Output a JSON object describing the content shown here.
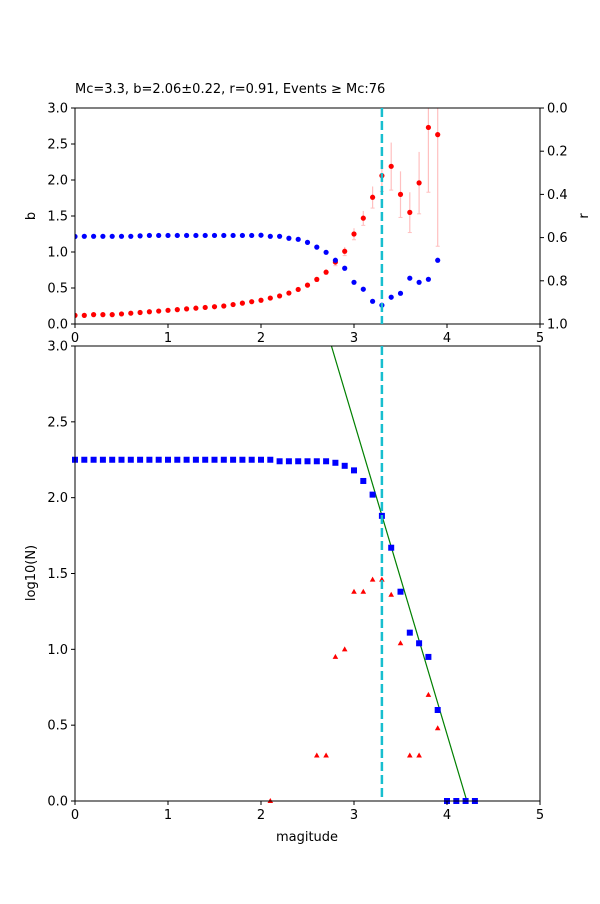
{
  "chart_data": [
    {
      "type": "scatter",
      "title": "Mc=3.3, b=2.06±0.22, r=0.91, Events ≥ Mc:76",
      "xlabel": "",
      "ylabel": "b",
      "y2label": "r",
      "xlim": [
        0,
        5
      ],
      "ylim": [
        0,
        3.0
      ],
      "y2lim": [
        1.0,
        0.0
      ],
      "y2_inverted": true,
      "xticks": [
        "0",
        "1",
        "2",
        "3",
        "4",
        "5"
      ],
      "yticks": [
        "0.0",
        "0.5",
        "1.0",
        "1.5",
        "2.0",
        "2.5",
        "3.0"
      ],
      "y2ticks": [
        "0.0",
        "0.2",
        "0.4",
        "0.6",
        "0.8",
        "1.0"
      ],
      "mc_line": 3.3,
      "mc_line_color": "#17becf",
      "x": [
        0,
        0.1,
        0.2,
        0.3,
        0.4,
        0.5,
        0.6,
        0.7,
        0.8,
        0.9,
        1.0,
        1.1,
        1.2,
        1.3,
        1.4,
        1.5,
        1.6,
        1.7,
        1.8,
        1.9,
        2.0,
        2.1,
        2.2,
        2.3,
        2.4,
        2.5,
        2.6,
        2.7,
        2.8,
        2.9,
        3.0,
        3.1,
        3.2,
        3.3,
        3.4,
        3.5,
        3.6,
        3.7,
        3.8,
        3.9
      ],
      "series": [
        {
          "axis": "left",
          "color": "#ff0000",
          "marker": "circle",
          "values": [
            0.12,
            0.12,
            0.13,
            0.13,
            0.13,
            0.14,
            0.15,
            0.16,
            0.17,
            0.18,
            0.19,
            0.2,
            0.21,
            0.22,
            0.23,
            0.24,
            0.25,
            0.27,
            0.29,
            0.31,
            0.33,
            0.36,
            0.39,
            0.43,
            0.48,
            0.54,
            0.62,
            0.72,
            0.86,
            1.01,
            1.25,
            1.47,
            1.76,
            2.06,
            2.19,
            1.8,
            1.55,
            1.96,
            2.73,
            2.63
          ],
          "errors": [
            0,
            0,
            0,
            0,
            0,
            0,
            0,
            0,
            0,
            0,
            0,
            0,
            0,
            0,
            0,
            0,
            0,
            0,
            0,
            0,
            0.01,
            0.01,
            0.01,
            0.02,
            0.02,
            0.02,
            0.03,
            0.03,
            0.05,
            0.06,
            0.08,
            0.1,
            0.15,
            0.22,
            0.33,
            0.32,
            0.28,
            0.43,
            0.9,
            1.55
          ],
          "error_color": "#ffc0c0"
        },
        {
          "axis": "right",
          "color": "#0000ff",
          "marker": "circle",
          "values": [
            0.595,
            0.594,
            0.594,
            0.594,
            0.594,
            0.594,
            0.594,
            0.592,
            0.59,
            0.59,
            0.59,
            0.59,
            0.59,
            0.59,
            0.59,
            0.59,
            0.59,
            0.59,
            0.59,
            0.59,
            0.589,
            0.594,
            0.594,
            0.603,
            0.608,
            0.622,
            0.644,
            0.668,
            0.705,
            0.742,
            0.807,
            0.839,
            0.895,
            0.913,
            0.876,
            0.858,
            0.788,
            0.807,
            0.793,
            0.705
          ]
        }
      ]
    },
    {
      "type": "scatter",
      "title": "",
      "xlabel": "magitude",
      "ylabel": "log10(N)",
      "xlim": [
        0,
        5
      ],
      "ylim": [
        0,
        3.0
      ],
      "xticks": [
        "0",
        "1",
        "2",
        "3",
        "4",
        "5"
      ],
      "yticks": [
        "0.0",
        "0.5",
        "1.0",
        "1.5",
        "2.0",
        "2.5",
        "3.0"
      ],
      "mc_line": 3.3,
      "mc_line_color": "#17becf",
      "fit_line": {
        "a": 8.68,
        "b": 2.06,
        "color": "#008000"
      },
      "series": [
        {
          "color": "#0000ff",
          "marker": "square",
          "x": [
            0,
            0.1,
            0.2,
            0.3,
            0.4,
            0.5,
            0.6,
            0.7,
            0.8,
            0.9,
            1.0,
            1.1,
            1.2,
            1.3,
            1.4,
            1.5,
            1.6,
            1.7,
            1.8,
            1.9,
            2.0,
            2.1,
            2.2,
            2.3,
            2.4,
            2.5,
            2.6,
            2.7,
            2.8,
            2.9,
            3.0,
            3.1,
            3.2,
            3.3,
            3.4,
            3.5,
            3.6,
            3.7,
            3.8,
            3.9,
            4.0,
            4.1,
            4.2,
            4.3
          ],
          "values": [
            2.25,
            2.25,
            2.25,
            2.25,
            2.25,
            2.25,
            2.25,
            2.25,
            2.25,
            2.25,
            2.25,
            2.25,
            2.25,
            2.25,
            2.25,
            2.25,
            2.25,
            2.25,
            2.25,
            2.25,
            2.25,
            2.25,
            2.24,
            2.24,
            2.24,
            2.24,
            2.24,
            2.24,
            2.23,
            2.21,
            2.18,
            2.11,
            2.02,
            1.88,
            1.67,
            1.38,
            1.11,
            1.04,
            0.95,
            0.6,
            0,
            0,
            0,
            0
          ]
        },
        {
          "color": "#ff0000",
          "marker": "triangle",
          "x": [
            2.1,
            2.6,
            2.7,
            2.8,
            2.9,
            3.0,
            3.1,
            3.2,
            3.3,
            3.4,
            3.5,
            3.6,
            3.7,
            3.8,
            3.9
          ],
          "values": [
            0,
            0.3,
            0.3,
            0.95,
            1.0,
            1.38,
            1.38,
            1.46,
            1.46,
            1.36,
            1.04,
            0.3,
            0.3,
            0.7,
            0.48
          ]
        }
      ]
    }
  ]
}
